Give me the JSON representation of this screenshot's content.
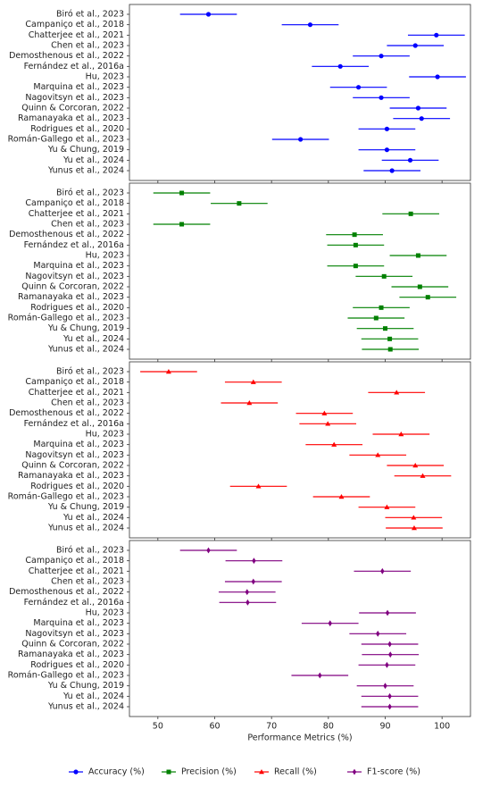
{
  "chart_data": [
    {
      "type": "forest",
      "xlim": [
        45,
        105
      ],
      "categories": [
        "Biró et al., 2023",
        "Campaniço et al., 2018",
        "Chatterjee et al., 2021",
        "Chen et al., 2023",
        "Demosthenous et al., 2022",
        "Fernández et al., 2016a",
        "Hu, 2023",
        "Marquina et al., 2023",
        "Nagovitsyn et al., 2023",
        "Quinn & Corcoran, 2022",
        "Ramanayaka et al., 2023",
        "Rodrigues et al., 2020",
        "Román-Gallego et al., 2023",
        "Yu & Chung, 2019",
        "Yu et al., 2024",
        "Yunus et al., 2024"
      ],
      "series": [
        {
          "name": "Accuracy (%)",
          "color": "#0000ff",
          "marker": "circle",
          "values": [
            58.9,
            76.8,
            99,
            95.3,
            89.3,
            82.1,
            99.2,
            85.3,
            89.3,
            95.8,
            96.4,
            90.3,
            75.1,
            90.3,
            94.4,
            91.2
          ],
          "errors": [
            5,
            5,
            5,
            5,
            5,
            5,
            5,
            5,
            5,
            5,
            5,
            5,
            5,
            5,
            5,
            5
          ]
        }
      ]
    },
    {
      "type": "forest",
      "xlim": [
        45,
        105
      ],
      "categories": [
        "Biró et al., 2023",
        "Campaniço et al., 2018",
        "Chatterjee et al., 2021",
        "Chen et al., 2023",
        "Demosthenous et al., 2022",
        "Fernández et al., 2016a",
        "Hu, 2023",
        "Marquina et al., 2023",
        "Nagovitsyn et al., 2023",
        "Quinn & Corcoran, 2022",
        "Ramanayaka et al., 2023",
        "Rodrigues et al., 2020",
        "Román-Gallego et al., 2023",
        "Yu & Chung, 2019",
        "Yu et al., 2024",
        "Yunus et al., 2024"
      ],
      "series": [
        {
          "name": "Precision (%)",
          "color": "#008000",
          "marker": "square",
          "values": [
            54.2,
            64.3,
            94.5,
            54.2,
            84.6,
            84.8,
            95.8,
            84.8,
            89.8,
            96.1,
            97.5,
            89.3,
            88.4,
            90,
            90.8,
            90.9
          ],
          "errors": [
            5,
            5,
            5,
            5,
            5,
            5,
            5,
            5,
            5,
            5,
            5,
            5,
            5,
            5,
            5,
            5
          ]
        }
      ]
    },
    {
      "type": "forest",
      "xlim": [
        45,
        105
      ],
      "categories": [
        "Biró et al., 2023",
        "Campaniço et al., 2018",
        "Chatterjee et al., 2021",
        "Chen et al., 2023",
        "Demosthenous et al., 2022",
        "Fernández et al., 2016a",
        "Hu, 2023",
        "Marquina et al., 2023",
        "Nagovitsyn et al., 2023",
        "Quinn & Corcoran, 2022",
        "Ramanayaka et al., 2023",
        "Rodrigues et al., 2020",
        "Román-Gallego et al., 2023",
        "Yu & Chung, 2019",
        "Yu et al., 2024",
        "Yunus et al., 2024"
      ],
      "series": [
        {
          "name": "Recall (%)",
          "color": "#ff0000",
          "marker": "triangle",
          "values": [
            51.9,
            66.8,
            92,
            66.1,
            79.3,
            79.9,
            92.8,
            81,
            88.7,
            95.3,
            96.6,
            67.7,
            82.3,
            90.3,
            95,
            95.1
          ],
          "errors": [
            5,
            5,
            5,
            5,
            5,
            5,
            5,
            5,
            5,
            5,
            5,
            5,
            5,
            5,
            5,
            5
          ]
        }
      ]
    },
    {
      "type": "forest",
      "xlim": [
        45,
        105
      ],
      "xticks": [
        50,
        60,
        70,
        80,
        90,
        100
      ],
      "xlabel": "Performance Metrics (%)",
      "categories": [
        "Biró et al., 2023",
        "Campaniço et al., 2018",
        "Chatterjee et al., 2021",
        "Chen et al., 2023",
        "Demosthenous et al., 2022",
        "Fernández et al., 2016a",
        "Hu, 2023",
        "Marquina et al., 2023",
        "Nagovitsyn et al., 2023",
        "Quinn & Corcoran, 2022",
        "Ramanayaka et al., 2023",
        "Rodrigues et al., 2020",
        "Román-Gallego et al., 2023",
        "Yu & Chung, 2019",
        "Yu et al., 2024",
        "Yunus et al., 2024"
      ],
      "series": [
        {
          "name": "F1-score (%)",
          "color": "#800080",
          "marker": "diamond",
          "values": [
            58.9,
            66.9,
            89.5,
            66.8,
            65.7,
            65.8,
            90.4,
            80.3,
            88.7,
            90.8,
            90.9,
            90.3,
            78.5,
            90,
            90.8,
            90.8
          ],
          "errors": [
            5,
            5,
            5,
            5,
            5,
            5,
            5,
            5,
            5,
            5,
            5,
            5,
            5,
            5,
            5,
            5
          ]
        }
      ]
    }
  ]
}
